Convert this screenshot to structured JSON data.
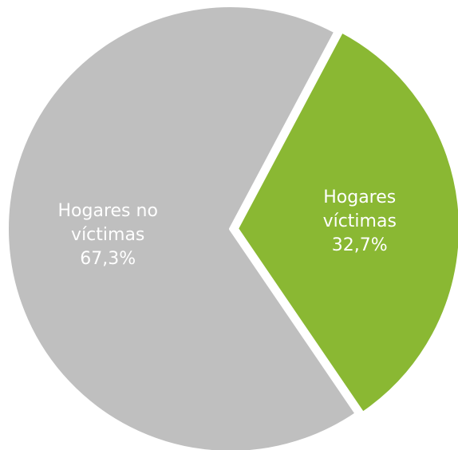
{
  "chart_data": {
    "type": "pie",
    "categories": [
      "Hogares víctimas",
      "Hogares no víctimas"
    ],
    "values": [
      32.7,
      67.3
    ],
    "value_labels": [
      "32,7%",
      "67,3%"
    ],
    "colors": [
      "#8ab833",
      "#bfbfbf"
    ]
  }
}
